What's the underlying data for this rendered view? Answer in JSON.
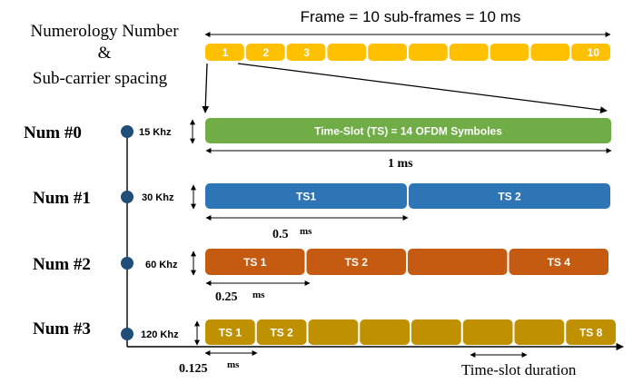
{
  "header": {
    "frame_label": "Frame = 10 sub-frames = 10 ms",
    "left_title_line1": "Numerology Number",
    "left_title_line2": "&",
    "left_title_line3": "Sub-carrier spacing"
  },
  "frame_bar": {
    "color": "#FFC000",
    "labels": [
      "1",
      "2",
      "3",
      "",
      "",
      "",
      "",
      "",
      "",
      "10"
    ]
  },
  "numerologies": [
    {
      "name": "Num #0",
      "scs": "15 Khz",
      "color": "#70AD47",
      "slots": [
        "Time-Slot (TS) = 14 OFDM Symboles"
      ],
      "duration_label": "1 ms"
    },
    {
      "name": "Num #1",
      "scs": "30 Khz",
      "color": "#2E75B6",
      "slots": [
        "TS1",
        "TS 2"
      ],
      "duration_label": "0.5",
      "duration_unit": "ms"
    },
    {
      "name": "Num #2",
      "scs": "60 Khz",
      "color": "#C55A11",
      "slots": [
        "TS 1",
        "TS 2",
        "",
        "TS 4"
      ],
      "duration_label": "0.25",
      "duration_unit": "ms"
    },
    {
      "name": "Num #3",
      "scs": "120 Khz",
      "color": "#BF9000",
      "slots": [
        "TS 1",
        "TS 2",
        "",
        "",
        "",
        "",
        "",
        "TS 8"
      ],
      "duration_label": "0.125",
      "duration_unit": "ms"
    }
  ],
  "footer": {
    "slot_duration_label": "Time-slot duration"
  },
  "axis_dot_color": "#1F4E79"
}
